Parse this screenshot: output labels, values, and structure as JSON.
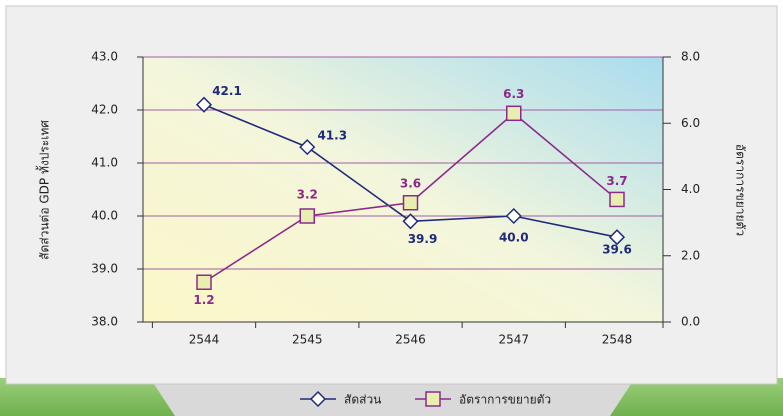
{
  "chart_data": {
    "type": "line",
    "categories": [
      "2544",
      "2545",
      "2546",
      "2547",
      "2548"
    ],
    "ylabel": "สัดส่วนต่อ GDP ทั้งประเทศ",
    "y2label": "อัตราการขยายตัว",
    "ylim": [
      38,
      43
    ],
    "yticks": [
      {
        "value": 38,
        "label": "38.0"
      },
      {
        "value": 39,
        "label": "39.0"
      },
      {
        "value": 40,
        "label": "40.0"
      },
      {
        "value": 41,
        "label": "41.0"
      },
      {
        "value": 42,
        "label": "42.0"
      },
      {
        "value": 43,
        "label": "43.0"
      }
    ],
    "y2lim": [
      0,
      8
    ],
    "y2ticks": [
      {
        "value": 0,
        "label": "0.0"
      },
      {
        "value": 2,
        "label": "2.0"
      },
      {
        "value": 4,
        "label": "4.0"
      },
      {
        "value": 6,
        "label": "6.0"
      },
      {
        "value": 8,
        "label": "8.0"
      }
    ],
    "grid": true,
    "series": [
      {
        "name": "สัดส่วน",
        "color": "#1f2a7a",
        "marker": "diamond",
        "values": [
          42.1,
          41.3,
          39.9,
          40.0,
          39.6
        ],
        "value_labels": [
          "42.1",
          "41.3",
          "39.9",
          "40.0",
          "39.6"
        ]
      },
      {
        "name": "อัตราการขยายตัว",
        "color": "#8b2a8b",
        "marker": "square",
        "axis": "y2",
        "values": [
          1.2,
          3.2,
          3.6,
          6.3,
          3.7
        ],
        "value_labels": [
          "1.2",
          "3.2",
          "3.6",
          "6.3",
          "3.7"
        ]
      }
    ]
  }
}
